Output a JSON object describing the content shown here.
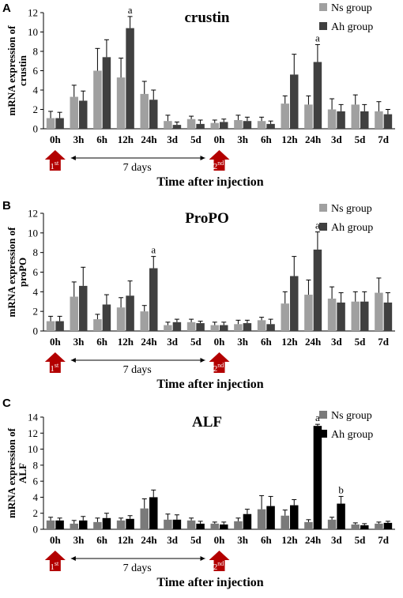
{
  "chart_data": [
    {
      "type": "bar",
      "panel_label": "A",
      "title": "crustin",
      "ylabel": "mRNA  expression of crustin",
      "xlabel": "Time after injection",
      "ylim": [
        0,
        12
      ],
      "yticks": [
        0,
        2,
        4,
        6,
        8,
        10,
        12
      ],
      "categories": [
        "0h",
        "3h",
        "6h",
        "12h",
        "24h",
        "3d",
        "5d",
        "0h",
        "3h",
        "6h",
        "12h",
        "24h",
        "3d",
        "5d",
        "7d"
      ],
      "series": [
        {
          "name": "Ns group",
          "color": "#a0a0a0",
          "values": [
            1.1,
            3.3,
            6.0,
            5.3,
            3.6,
            0.8,
            1.0,
            0.6,
            0.9,
            0.8,
            2.6,
            2.5,
            2.0,
            2.5,
            1.8
          ],
          "errors": [
            0.7,
            1.2,
            2.3,
            2.0,
            1.3,
            0.6,
            0.3,
            0.3,
            0.5,
            0.4,
            0.8,
            0.9,
            1.1,
            1.0,
            1.0
          ]
        },
        {
          "name": "Ah group",
          "color": "#404040",
          "values": [
            1.1,
            2.9,
            7.4,
            10.4,
            3.0,
            0.4,
            0.5,
            0.7,
            0.8,
            0.5,
            5.6,
            6.9,
            1.8,
            1.8,
            1.5
          ],
          "errors": [
            0.6,
            1.0,
            1.8,
            1.2,
            1.0,
            0.3,
            0.4,
            0.3,
            0.4,
            0.3,
            2.1,
            1.8,
            0.7,
            0.7,
            0.5
          ]
        }
      ],
      "annotations": [
        {
          "text": "a",
          "category_index": 3,
          "series": "Ah group"
        },
        {
          "text": "a",
          "category_index": 11,
          "series": "Ah group"
        }
      ],
      "markers": {
        "first": "1",
        "first_sup": "st",
        "second": "2",
        "second_sup": "nd",
        "interval": "7 days"
      }
    },
    {
      "type": "bar",
      "panel_label": "B",
      "title": "ProPO",
      "ylabel": "mRNA  expression of proPO",
      "xlabel": "Time after injection",
      "ylim": [
        0,
        12
      ],
      "yticks": [
        0,
        2,
        4,
        6,
        8,
        10,
        12
      ],
      "categories": [
        "0h",
        "3h",
        "6h",
        "12h",
        "24h",
        "3d",
        "5d",
        "0h",
        "3h",
        "6h",
        "12h",
        "24h",
        "3d",
        "5d",
        "7d"
      ],
      "series": [
        {
          "name": "Ns group",
          "color": "#a0a0a0",
          "values": [
            1.0,
            3.5,
            1.2,
            2.4,
            2.0,
            0.6,
            0.9,
            0.6,
            0.7,
            1.1,
            2.8,
            3.7,
            3.3,
            3.0,
            3.9
          ],
          "errors": [
            0.5,
            1.5,
            0.5,
            1.0,
            0.6,
            0.3,
            0.3,
            0.3,
            0.4,
            0.3,
            1.2,
            1.5,
            1.2,
            1.0,
            1.5
          ]
        },
        {
          "name": "Ah group",
          "color": "#404040",
          "values": [
            1.0,
            4.6,
            2.7,
            3.6,
            6.4,
            0.9,
            0.8,
            0.6,
            0.8,
            0.7,
            5.6,
            8.3,
            2.9,
            3.0,
            2.9
          ],
          "errors": [
            0.5,
            1.9,
            1.0,
            1.5,
            1.2,
            0.3,
            0.2,
            0.3,
            0.3,
            0.5,
            2.0,
            1.8,
            1.0,
            1.0,
            1.0
          ]
        }
      ],
      "annotations": [
        {
          "text": "a",
          "category_index": 4,
          "series": "Ah group"
        },
        {
          "text": "a",
          "category_index": 11,
          "series": "Ah group"
        }
      ],
      "markers": {
        "first": "1",
        "first_sup": "st",
        "second": "2",
        "second_sup": "nd",
        "interval": "7 days"
      }
    },
    {
      "type": "bar",
      "panel_label": "C",
      "title": "ALF",
      "ylabel": "mRNA  expression of ALF",
      "xlabel": "Time after injection",
      "ylim": [
        0,
        14
      ],
      "yticks": [
        0,
        2,
        4,
        6,
        8,
        10,
        12,
        14
      ],
      "categories": [
        "0h",
        "3h",
        "6h",
        "12h",
        "24h",
        "3d",
        "5d",
        "0h",
        "3h",
        "6h",
        "12h",
        "24h",
        "3d",
        "5d",
        "7d"
      ],
      "series": [
        {
          "name": "Ns group",
          "color": "#7a7a7a",
          "values": [
            1.1,
            0.7,
            0.9,
            1.1,
            2.6,
            1.2,
            1.1,
            0.7,
            1.0,
            2.5,
            1.7,
            0.9,
            1.2,
            0.6,
            0.7
          ],
          "errors": [
            0.4,
            0.4,
            0.5,
            0.3,
            1.2,
            0.7,
            0.3,
            0.2,
            0.4,
            1.7,
            0.7,
            0.3,
            0.3,
            0.2,
            0.2
          ]
        },
        {
          "name": "Ah group",
          "color": "#000000",
          "values": [
            1.1,
            1.1,
            1.4,
            1.3,
            4.0,
            1.2,
            0.7,
            0.6,
            1.9,
            2.9,
            3.0,
            12.9,
            3.2,
            0.5,
            0.8
          ],
          "errors": [
            0.3,
            0.5,
            0.6,
            0.4,
            0.9,
            0.6,
            0.3,
            0.3,
            0.6,
            1.2,
            0.7,
            0.2,
            0.9,
            0.2,
            0.2
          ]
        }
      ],
      "annotations": [
        {
          "text": "a",
          "category_index": 11,
          "series": "Ah group"
        },
        {
          "text": "b",
          "category_index": 12,
          "series": "Ah group"
        }
      ],
      "markers": {
        "first": "1",
        "first_sup": "st",
        "second": "2",
        "second_sup": "nd",
        "interval": "7 days"
      }
    }
  ]
}
